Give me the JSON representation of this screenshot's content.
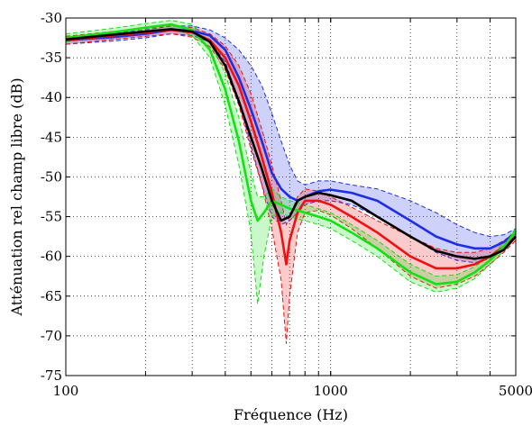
{
  "chart_data": {
    "type": "line",
    "xlabel": "Fréquence (Hz)",
    "ylabel": "Atténuation rel champ libre (dB)",
    "xscale": "log",
    "xlim": [
      100,
      5000
    ],
    "ylim": [
      -75,
      -30
    ],
    "xticks": [
      100,
      1000,
      5000
    ],
    "xtick_labels": [
      "100",
      "1000",
      "5000"
    ],
    "yticks": [
      -75,
      -70,
      -65,
      -60,
      -55,
      -50,
      -45,
      -40,
      -35,
      -30
    ],
    "ytick_labels": [
      "-75",
      "-70",
      "-65",
      "-60",
      "-55",
      "-50",
      "-45",
      "-40",
      "-35",
      "-30"
    ],
    "grid": true,
    "colors": {
      "blue": "#1f2ee6",
      "red": "#ee1111",
      "green": "#14e014",
      "black": "#000000"
    },
    "series": [
      {
        "color": "blue",
        "x": [
          100,
          150,
          200,
          250,
          300,
          350,
          400,
          450,
          500,
          550,
          600,
          650,
          700,
          750,
          800,
          900,
          1000,
          1200,
          1500,
          2000,
          2500,
          3000,
          3500,
          4000,
          4500,
          5000
        ],
        "y": [
          -32.8,
          -32.4,
          -32.0,
          -31.5,
          -31.6,
          -32.2,
          -34.0,
          -37.5,
          -41.5,
          -45.5,
          -49.5,
          -51.5,
          -52.5,
          -53.0,
          -52.5,
          -51.8,
          -51.6,
          -52.0,
          -53.0,
          -55.5,
          -57.5,
          -58.5,
          -59.0,
          -59.0,
          -58.2,
          -57.0
        ],
        "upper": [
          -32.3,
          -31.9,
          -31.5,
          -31.0,
          -31.0,
          -31.5,
          -32.5,
          -34.0,
          -36.0,
          -38.5,
          -42.0,
          -45.5,
          -48.5,
          -50.5,
          -51.0,
          -50.5,
          -50.5,
          -51.0,
          -51.5,
          -53.0,
          -54.5,
          -56.0,
          -57.0,
          -57.5,
          -57.3,
          -56.5
        ],
        "lower": [
          -33.3,
          -32.9,
          -32.5,
          -32.0,
          -32.2,
          -33.0,
          -35.5,
          -40.5,
          -46.0,
          -51.0,
          -55.0,
          -56.0,
          -55.5,
          -54.5,
          -53.5,
          -53.0,
          -53.0,
          -53.5,
          -55.0,
          -57.5,
          -59.5,
          -60.5,
          -60.8,
          -60.3,
          -59.0,
          -57.5
        ]
      },
      {
        "color": "red",
        "x": [
          100,
          150,
          200,
          250,
          300,
          350,
          400,
          450,
          500,
          550,
          600,
          650,
          680,
          700,
          750,
          800,
          900,
          1000,
          1200,
          1500,
          2000,
          2500,
          3000,
          3500,
          4000,
          4500,
          5000
        ],
        "y": [
          -32.8,
          -32.2,
          -31.8,
          -31.5,
          -31.8,
          -32.8,
          -35.0,
          -38.5,
          -43.0,
          -47.5,
          -52.0,
          -57.0,
          -61.0,
          -58.0,
          -54.5,
          -53.0,
          -53.0,
          -53.5,
          -55.0,
          -57.0,
          -60.0,
          -61.5,
          -61.5,
          -61.0,
          -60.0,
          -58.8,
          -57.5
        ],
        "upper": [
          -32.3,
          -31.7,
          -31.3,
          -31.0,
          -31.2,
          -32.0,
          -33.5,
          -36.0,
          -39.5,
          -44.0,
          -48.5,
          -53.0,
          -56.0,
          -55.0,
          -52.5,
          -51.5,
          -51.8,
          -52.5,
          -53.8,
          -55.5,
          -57.5,
          -59.0,
          -59.5,
          -59.5,
          -59.0,
          -58.0,
          -57.0
        ],
        "lower": [
          -33.3,
          -32.7,
          -32.3,
          -32.0,
          -32.4,
          -33.6,
          -36.5,
          -41.0,
          -46.5,
          -51.0,
          -56.5,
          -63.0,
          -71.0,
          -65.0,
          -57.0,
          -54.5,
          -54.2,
          -54.8,
          -56.5,
          -59.0,
          -62.5,
          -64.0,
          -63.5,
          -62.5,
          -61.0,
          -59.5,
          -58.0
        ]
      },
      {
        "color": "green",
        "x": [
          100,
          150,
          200,
          250,
          300,
          350,
          400,
          450,
          500,
          530,
          560,
          600,
          650,
          700,
          750,
          800,
          900,
          1000,
          1200,
          1500,
          2000,
          2500,
          3000,
          3500,
          4000,
          4500,
          5000
        ],
        "y": [
          -32.5,
          -31.8,
          -31.2,
          -30.8,
          -31.5,
          -34.0,
          -39.0,
          -45.5,
          -53.0,
          -55.5,
          -54.5,
          -53.0,
          -53.5,
          -54.0,
          -54.2,
          -54.5,
          -55.0,
          -55.5,
          -57.0,
          -59.0,
          -62.0,
          -63.5,
          -63.2,
          -62.0,
          -60.5,
          -58.8,
          -56.8
        ],
        "upper": [
          -32.0,
          -31.3,
          -30.7,
          -30.3,
          -30.8,
          -33.0,
          -37.0,
          -42.5,
          -49.5,
          -52.5,
          -52.5,
          -51.5,
          -52.5,
          -53.0,
          -53.2,
          -53.5,
          -54.0,
          -54.5,
          -56.0,
          -58.0,
          -61.0,
          -62.5,
          -62.3,
          -61.3,
          -60.0,
          -58.3,
          -56.5
        ],
        "lower": [
          -33.0,
          -32.3,
          -31.7,
          -31.3,
          -32.2,
          -35.0,
          -41.0,
          -48.5,
          -57.0,
          -66.0,
          -60.0,
          -55.0,
          -54.5,
          -55.0,
          -55.3,
          -55.5,
          -56.0,
          -56.5,
          -58.0,
          -60.0,
          -63.2,
          -64.5,
          -64.0,
          -62.8,
          -61.0,
          -59.3,
          -57.2
        ]
      },
      {
        "color": "black",
        "x": [
          100,
          150,
          200,
          250,
          300,
          350,
          400,
          450,
          500,
          550,
          600,
          650,
          700,
          750,
          800,
          900,
          1000,
          1200,
          1500,
          2000,
          2500,
          3000,
          3500,
          4000,
          4500,
          5000
        ],
        "y": [
          -32.7,
          -32.1,
          -31.7,
          -31.4,
          -31.7,
          -33.0,
          -36.0,
          -40.5,
          -45.0,
          -49.0,
          -53.0,
          -55.5,
          -55.0,
          -53.0,
          -52.5,
          -52.0,
          -52.3,
          -53.0,
          -55.0,
          -57.5,
          -59.3,
          -60.0,
          -60.3,
          -60.0,
          -59.2,
          -57.5
        ]
      }
    ]
  }
}
